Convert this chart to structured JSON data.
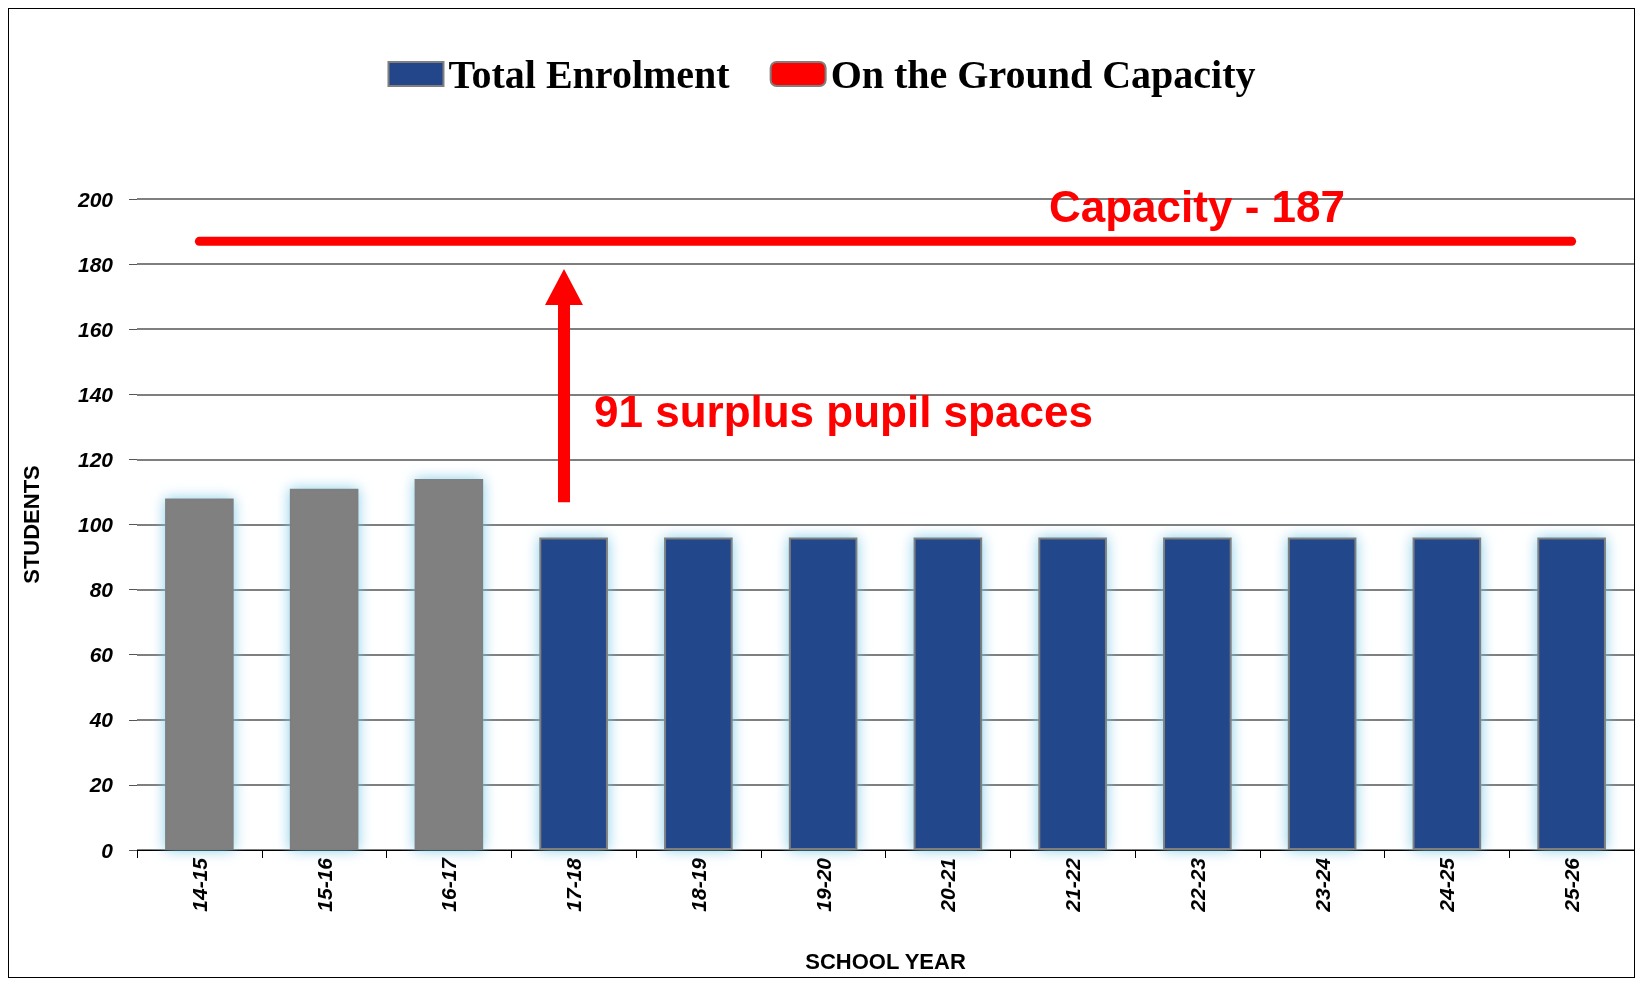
{
  "chart_data": {
    "type": "bar",
    "categories": [
      "14-15",
      "15-16",
      "16-17",
      "17-18",
      "18-19",
      "19-20",
      "20-21",
      "21-22",
      "22-23",
      "23-24",
      "24-25",
      "25-26"
    ],
    "series": [
      {
        "name": "Total Enrolment",
        "color": "#23468a",
        "colors": [
          "#808080",
          "#808080",
          "#808080",
          "#23468a",
          "#23468a",
          "#23468a",
          "#23468a",
          "#23468a",
          "#23468a",
          "#23468a",
          "#23468a",
          "#23468a"
        ],
        "values": [
          108,
          111,
          114,
          96,
          96,
          96,
          96,
          96,
          96,
          96,
          96,
          96
        ]
      },
      {
        "name": "On the Ground Capacity",
        "type": "line",
        "color": "#ff0000",
        "values": [
          187,
          187,
          187,
          187,
          187,
          187,
          187,
          187,
          187,
          187,
          187,
          187
        ]
      }
    ],
    "xlabel": "SCHOOL YEAR",
    "ylabel": "STUDENTS",
    "ylim": [
      0,
      200
    ],
    "yticks": [
      0,
      20,
      40,
      60,
      80,
      100,
      120,
      140,
      160,
      180,
      200
    ],
    "grid": "y",
    "legend": "top",
    "marker": "none",
    "annotations": [
      "Capacity - 187",
      "91 surplus pupil spaces"
    ]
  }
}
